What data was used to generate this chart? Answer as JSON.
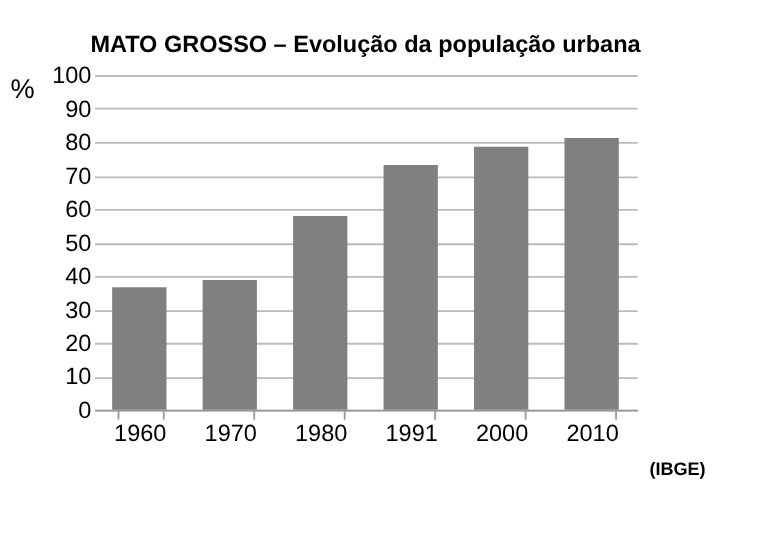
{
  "chart_data": {
    "type": "bar",
    "title": "MATO GROSSO – Evolução da população urbana",
    "ylabel": "%",
    "categories": [
      "1960",
      "1970",
      "1980",
      "1991",
      "2000",
      "2010"
    ],
    "values": [
      36.6,
      38.8,
      57.9,
      73.1,
      78.6,
      81.2
    ],
    "color": "#808080",
    "ylim": [
      0,
      100
    ],
    "yticks": [
      0,
      10,
      20,
      30,
      40,
      50,
      60,
      70,
      80,
      90,
      100
    ],
    "grid": "y",
    "annotations": [
      "(IBGE)"
    ]
  }
}
